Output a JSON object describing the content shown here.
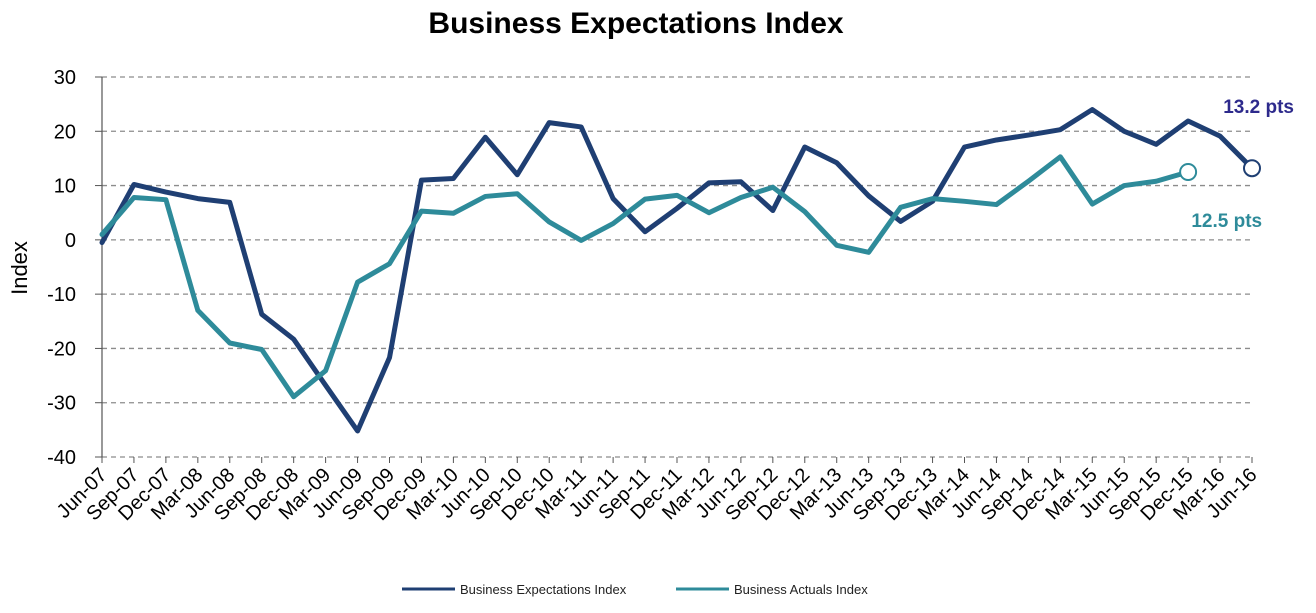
{
  "chart_data": {
    "type": "line",
    "title": "Business Expectations Index",
    "xlabel": "",
    "ylabel": "Index",
    "ylim": [
      -40,
      30
    ],
    "yticks": [
      30,
      20,
      10,
      0,
      -10,
      -20,
      -30,
      -40
    ],
    "grid": true,
    "legend_position": "bottom",
    "categories": [
      "Jun-07",
      "Sep-07",
      "Dec-07",
      "Mar-08",
      "Jun-08",
      "Sep-08",
      "Dec-08",
      "Mar-09",
      "Jun-09",
      "Sep-09",
      "Dec-09",
      "Mar-10",
      "Jun-10",
      "Sep-10",
      "Dec-10",
      "Mar-11",
      "Jun-11",
      "Sep-11",
      "Dec-11",
      "Mar-12",
      "Jun-12",
      "Sep-12",
      "Dec-12",
      "Mar-13",
      "Jun-13",
      "Sep-13",
      "Dec-13",
      "Mar-14",
      "Jun-14",
      "Sep-14",
      "Dec-14",
      "Mar-15",
      "Jun-15",
      "Sep-15",
      "Dec-15",
      "Mar-16",
      "Jun-16"
    ],
    "series": [
      {
        "name": "Business Expectations Index",
        "color": "#1f3f73",
        "values": [
          -0.5,
          10.2,
          8.8,
          7.6,
          6.9,
          -13.7,
          -18.3,
          -26.8,
          -35.2,
          -21.7,
          11.0,
          11.3,
          18.9,
          12.0,
          21.6,
          20.8,
          7.6,
          1.5,
          5.8,
          10.5,
          10.7,
          5.4,
          17.1,
          14.2,
          8.1,
          3.4,
          7.1,
          17.1,
          18.4,
          19.3,
          20.3,
          24.0,
          20.0,
          17.6,
          21.9,
          19.1,
          13.2
        ]
      },
      {
        "name": "Business Actuals Index",
        "color": "#2e8b9a",
        "values": [
          1.0,
          7.8,
          7.4,
          -13.0,
          -19.0,
          -20.2,
          -28.9,
          -24.1,
          -7.8,
          -4.4,
          5.3,
          4.9,
          8.0,
          8.5,
          3.3,
          -0.1,
          3.0,
          7.5,
          8.2,
          5.0,
          7.8,
          9.7,
          5.2,
          -1.0,
          -2.3,
          6.0,
          7.6,
          7.1,
          6.5,
          10.8,
          15.3,
          6.6,
          10.0,
          10.8,
          12.5,
          null,
          null
        ]
      }
    ],
    "annotations": [
      {
        "series": "Business Expectations Index",
        "text": "13.2 pts",
        "at": "Jun-16",
        "color": "#2d2a8c"
      },
      {
        "series": "Business Actuals Index",
        "text": "12.5 pts",
        "at": "Dec-15",
        "color": "#2e8b9a"
      }
    ]
  }
}
